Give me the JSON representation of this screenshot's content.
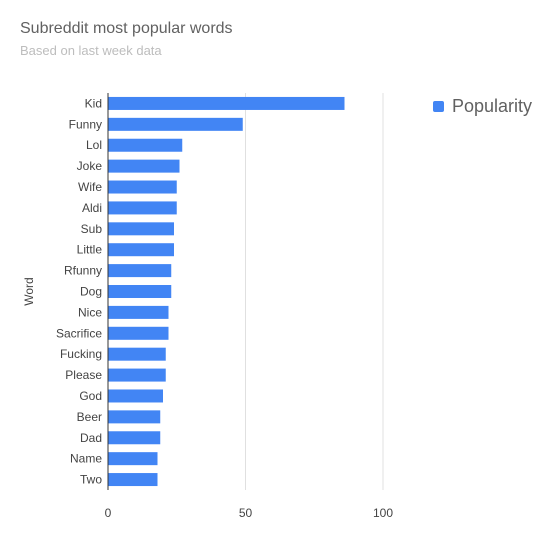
{
  "chart_data": {
    "type": "bar",
    "orientation": "horizontal",
    "title": "Subreddit most popular words",
    "subtitle": "Based on last week data",
    "ylabel": "Word",
    "xlabel": "",
    "categories": [
      "Kid",
      "Funny",
      "Lol",
      "Joke",
      "Wife",
      "Aldi",
      "Sub",
      "Little",
      "Rfunny",
      "Dog",
      "Nice",
      "Sacrifice",
      "Fucking",
      "Please",
      "God",
      "Beer",
      "Dad",
      "Name",
      "Two"
    ],
    "series": [
      {
        "name": "Popularity",
        "values": [
          86,
          49,
          27,
          26,
          25,
          25,
          24,
          24,
          23,
          23,
          22,
          22,
          21,
          21,
          20,
          19,
          19,
          18,
          18
        ]
      }
    ],
    "xlim": [
      0,
      100
    ],
    "xticks": [
      "0",
      "50",
      "100"
    ],
    "grid": true,
    "legend_position": "top-right",
    "colors": {
      "bar": "#4285f4",
      "grid": "#e0e0e0",
      "axis": "#333333"
    }
  }
}
